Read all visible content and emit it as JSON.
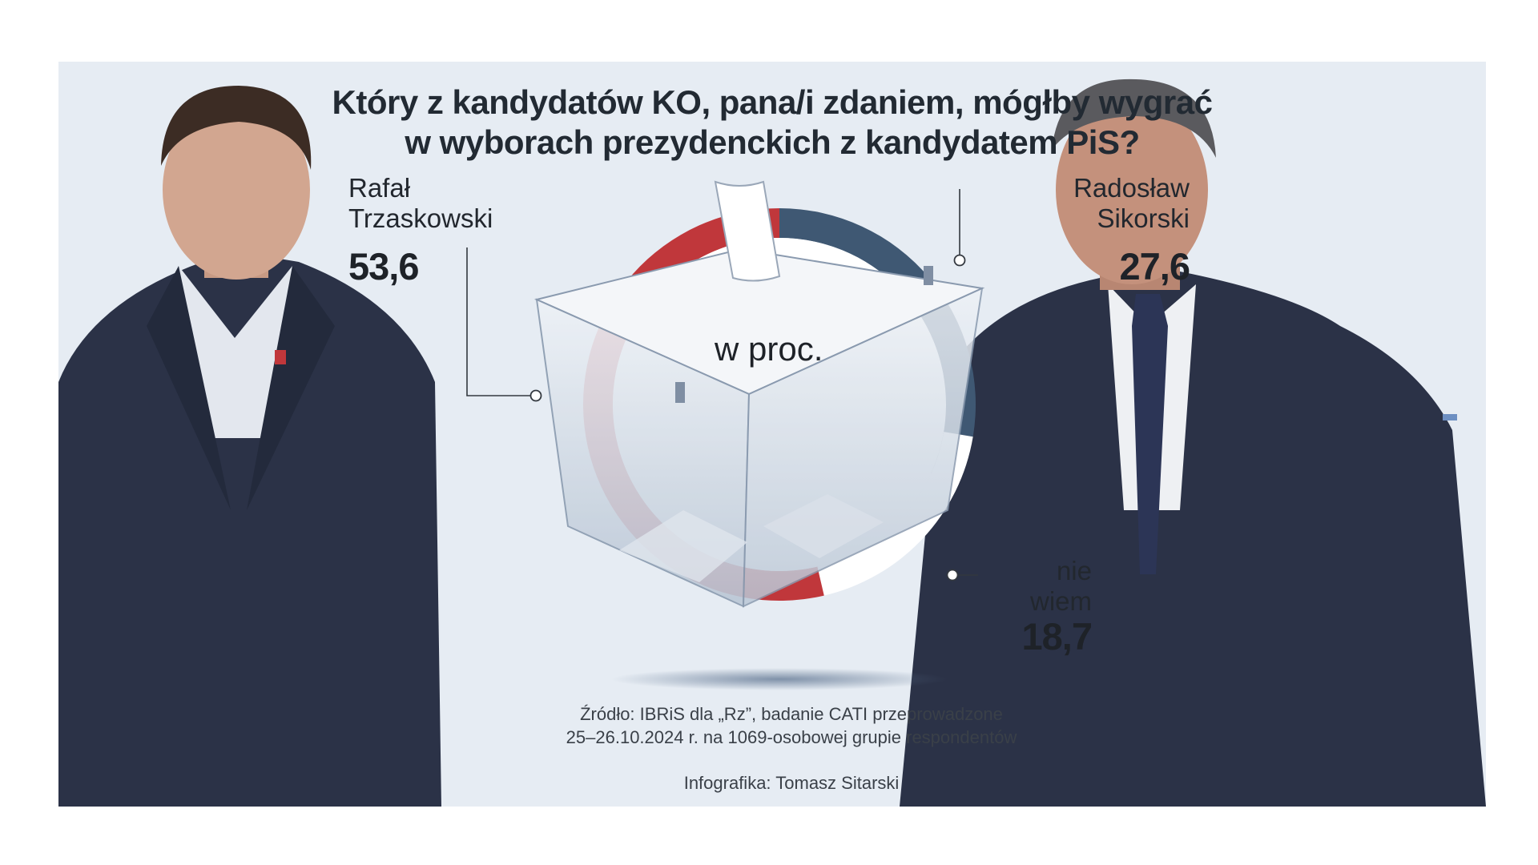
{
  "title_line1": "Który z kandydatów KO, pana/i zdaniem, mógłby wygrać",
  "title_line2": "w wyborach prezydenckich z kandydatem PiS?",
  "center_label": "w proc.",
  "source_line1": "Źródło: IBRiS dla „Rz”, badanie CATI przeprowadzone",
  "source_line2": "25–26.10.2024 r. na 1069-osobowej grupie respondentów",
  "credit": "Infografika: Tomasz Sitarski",
  "chart_data": {
    "type": "pie",
    "title": "Który z kandydatów KO, pana/i zdaniem, mógłby wygrać w wyborach prezydenckich z kandydatem PiS?",
    "unit": "w proc.",
    "slices": [
      {
        "label_line1": "Rafał",
        "label_line2": "Trzaskowski",
        "value": 53.6,
        "value_label": "53,6",
        "color": "#c0373b"
      },
      {
        "label_line1": "Radosław",
        "label_line2": "Sikorski",
        "value": 27.6,
        "value_label": "27,6",
        "color": "#3f5873"
      },
      {
        "label_line1": "nie",
        "label_line2": "wiem",
        "value": 18.7,
        "value_label": "18,7",
        "color": "#ffffff"
      }
    ]
  },
  "colors": {
    "background": "#e6ecf3",
    "trzaskowski": "#c0373b",
    "sikorski": "#3f5873",
    "nie_wiem": "#ffffff",
    "suit": "#2b3247"
  }
}
